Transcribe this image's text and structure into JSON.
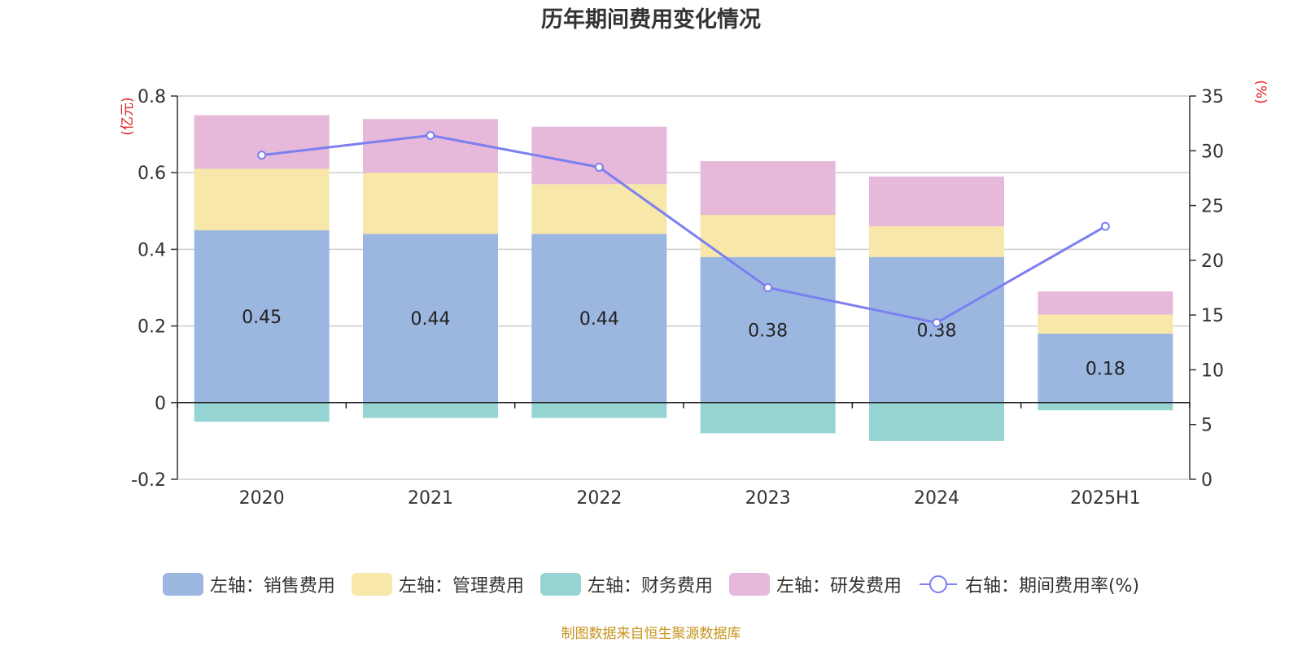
{
  "chart_data": {
    "type": "bar",
    "title": "历年期间费用变化情况",
    "categories": [
      "2020",
      "2021",
      "2022",
      "2023",
      "2024",
      "2025H1"
    ],
    "left_axis": {
      "unit_label": "(亿元)",
      "ylim": [
        -0.2,
        0.8
      ],
      "ticks": [
        "-0.2",
        "0",
        "0.2",
        "0.4",
        "0.6",
        "0.8"
      ],
      "tick_values": [
        -0.2,
        0,
        0.2,
        0.4,
        0.6,
        0.8
      ]
    },
    "right_axis": {
      "unit_label": "(%)",
      "ylim": [
        0,
        35
      ],
      "ticks": [
        "0",
        "5",
        "10",
        "15",
        "20",
        "25",
        "30",
        "35"
      ],
      "tick_values": [
        0,
        5,
        10,
        15,
        20,
        25,
        30,
        35
      ]
    },
    "series": [
      {
        "name": "左轴：销售费用",
        "type": "bar",
        "color": "#9bb7e0",
        "values": [
          0.45,
          0.44,
          0.44,
          0.38,
          0.38,
          0.18
        ],
        "labels": [
          "0.45",
          "0.44",
          "0.44",
          "0.38",
          "0.38",
          "0.18"
        ]
      },
      {
        "name": "左轴：管理费用",
        "type": "bar",
        "color": "#f7e7a8",
        "values": [
          0.16,
          0.16,
          0.13,
          0.11,
          0.08,
          0.05
        ]
      },
      {
        "name": "左轴：财务费用",
        "type": "bar",
        "color": "#96d4d3",
        "values": [
          -0.05,
          -0.04,
          -0.04,
          -0.08,
          -0.1,
          -0.02
        ]
      },
      {
        "name": "左轴：研发费用",
        "type": "bar",
        "color": "#e6b8d9",
        "values": [
          0.14,
          0.14,
          0.15,
          0.14,
          0.13,
          0.06
        ]
      },
      {
        "name": "右轴：期间费用率(%)",
        "type": "line",
        "axis": "right",
        "color": "#7b7ff0",
        "values": [
          29.6,
          31.4,
          28.5,
          17.5,
          14.3,
          23.1
        ]
      }
    ],
    "grid": true,
    "legend_position": "bottom"
  },
  "source_text": "制图数据来自恒生聚源数据库",
  "colors": {
    "axis_unit": "#e02020",
    "grid": "#cccccc",
    "axis": "#333333",
    "source": "#c8951e"
  }
}
